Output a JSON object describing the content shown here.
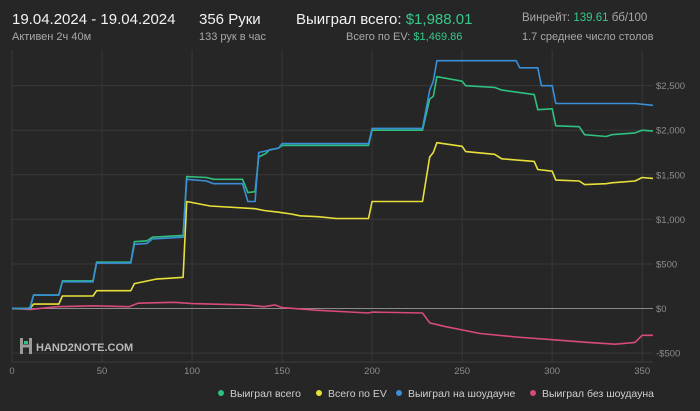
{
  "header": {
    "date_range": "19.04.2024 - 19.04.2024",
    "active_time": "Активен 2ч 40м",
    "hands": "356 Руки",
    "hands_per_hour": "133 рук в час",
    "won_total_label": "Выиграл всего:",
    "won_total_value": "$1,988.01",
    "ev_label": "Всего по EV:",
    "ev_value": "$1,469.86",
    "winrate_label": "Винрейт:",
    "winrate_value": "139.61",
    "winrate_unit": "бб/100",
    "avg_tables": "1.7 среднее число столов"
  },
  "watermark": "HAND2NOTE.COM",
  "colors": {
    "won_total": "#2fc07f",
    "ev": "#e8e03a",
    "showdown": "#3a8fd8",
    "non_showdown": "#d64a7c",
    "accent_green": "#36c98a"
  },
  "chart_data": {
    "type": "line",
    "xlabel": "",
    "ylabel": "",
    "xlim": [
      0,
      356
    ],
    "ylim": [
      -500,
      2800
    ],
    "xticks": [
      0,
      50,
      100,
      150,
      200,
      250,
      300,
      350
    ],
    "yticks": [
      -500,
      0,
      500,
      1000,
      1500,
      2000,
      2500
    ],
    "ytick_labels": [
      "-$500",
      "$0",
      "$500",
      "$1,000",
      "$1,500",
      "$2,000",
      "$2,500"
    ],
    "grid": true,
    "legend_position": "bottom",
    "series": [
      {
        "name": "Выиграл всего",
        "color": "#2fc07f",
        "x": [
          0,
          8,
          10,
          12,
          26,
          28,
          45,
          47,
          66,
          68,
          75,
          78,
          95,
          97,
          108,
          112,
          128,
          131,
          135,
          137,
          141,
          143,
          148,
          150,
          198,
          200,
          228,
          232,
          234,
          236,
          250,
          252,
          268,
          272,
          290,
          292,
          300,
          302,
          315,
          318,
          330,
          333,
          346,
          350,
          356
        ],
        "y": [
          0,
          0,
          10,
          150,
          150,
          310,
          310,
          520,
          520,
          750,
          760,
          800,
          820,
          1480,
          1470,
          1450,
          1450,
          1300,
          1310,
          1700,
          1740,
          1780,
          1800,
          1830,
          1830,
          2000,
          2000,
          2350,
          2380,
          2600,
          2550,
          2500,
          2480,
          2450,
          2400,
          2230,
          2240,
          2050,
          2040,
          1950,
          1930,
          1950,
          1970,
          2000,
          1990
        ]
      },
      {
        "name": "Всего по EV",
        "color": "#e8e03a",
        "x": [
          0,
          10,
          12,
          26,
          28,
          45,
          47,
          66,
          68,
          80,
          88,
          95,
          97,
          110,
          135,
          140,
          148,
          155,
          160,
          170,
          180,
          198,
          200,
          228,
          232,
          234,
          236,
          250,
          252,
          268,
          272,
          290,
          292,
          300,
          302,
          315,
          318,
          330,
          333,
          346,
          350,
          356
        ],
        "y": [
          0,
          0,
          50,
          50,
          140,
          140,
          200,
          200,
          280,
          330,
          340,
          350,
          1200,
          1150,
          1120,
          1100,
          1080,
          1060,
          1040,
          1030,
          1010,
          1010,
          1200,
          1200,
          1700,
          1750,
          1860,
          1820,
          1760,
          1730,
          1680,
          1650,
          1560,
          1540,
          1440,
          1430,
          1390,
          1400,
          1410,
          1430,
          1470,
          1460
        ]
      },
      {
        "name": "Выиграл на шоудауне",
        "color": "#3a8fd8",
        "x": [
          0,
          10,
          12,
          26,
          28,
          45,
          47,
          66,
          68,
          75,
          78,
          95,
          97,
          108,
          112,
          128,
          131,
          135,
          137,
          148,
          150,
          198,
          200,
          228,
          232,
          234,
          236,
          280,
          282,
          292,
          294,
          300,
          302,
          346,
          356
        ],
        "y": [
          0,
          0,
          150,
          150,
          300,
          300,
          510,
          510,
          720,
          730,
          780,
          800,
          1450,
          1430,
          1400,
          1400,
          1200,
          1200,
          1750,
          1800,
          1850,
          1850,
          2020,
          2020,
          2450,
          2550,
          2780,
          2780,
          2700,
          2700,
          2500,
          2500,
          2300,
          2300,
          2280
        ]
      },
      {
        "name": "Выиграл без шоудауна",
        "color": "#d64a7c",
        "x": [
          0,
          10,
          25,
          45,
          65,
          70,
          90,
          100,
          130,
          140,
          146,
          150,
          170,
          198,
          200,
          228,
          232,
          240,
          260,
          280,
          300,
          320,
          335,
          346,
          350,
          356
        ],
        "y": [
          0,
          -10,
          20,
          30,
          20,
          60,
          70,
          55,
          40,
          20,
          40,
          10,
          -20,
          -50,
          -40,
          -50,
          -160,
          -200,
          -280,
          -320,
          -350,
          -380,
          -400,
          -380,
          -300,
          -300
        ]
      }
    ]
  }
}
